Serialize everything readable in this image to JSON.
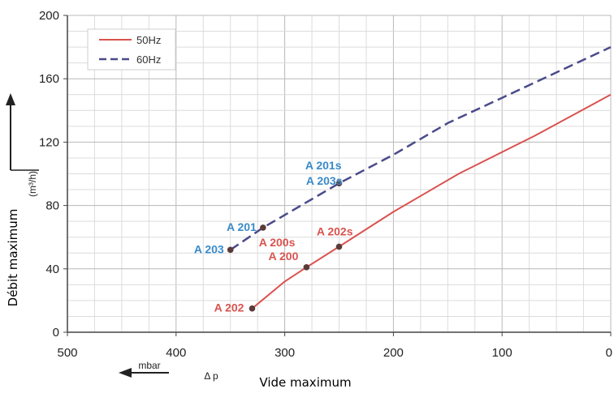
{
  "chart_data": {
    "type": "line",
    "title": "",
    "xlabel": "Vide maximum",
    "ylabel": "Débit maximum",
    "ylabel_unit": "(m³/h)",
    "x_unit_label": "mbar",
    "x_symbol": "Δ p",
    "xlim": [
      500,
      0
    ],
    "ylim": [
      0,
      200
    ],
    "x_ticks": [
      "500",
      "400",
      "300",
      "200",
      "100",
      "0"
    ],
    "y_ticks": [
      "0",
      "40",
      "80",
      "120",
      "160",
      "200"
    ],
    "grid": true,
    "legend_position": "top-left",
    "series": [
      {
        "name": "50Hz",
        "color": "#d9534f",
        "dash": "solid",
        "x": [
          330,
          300,
          280,
          250,
          200,
          140,
          70,
          0
        ],
        "y": [
          15,
          32,
          41,
          54,
          76,
          100,
          124,
          150
        ]
      },
      {
        "name": "60Hz",
        "color": "#4a4a8a",
        "dash": "dashed",
        "x": [
          350,
          320,
          250,
          200,
          150,
          100,
          50,
          0
        ],
        "y": [
          52,
          66,
          94,
          112,
          132,
          148,
          164,
          180
        ]
      }
    ],
    "annotations": [
      {
        "text": "A 202",
        "x": 330,
        "y": 15,
        "color": "#d9534f"
      },
      {
        "text": "A 200",
        "x": 280,
        "y": 41,
        "color": "#d9534f"
      },
      {
        "text": "A 200s",
        "x": 280,
        "y": 41,
        "color": "#d9534f"
      },
      {
        "text": "A 202s",
        "x": 250,
        "y": 54,
        "color": "#d9534f"
      },
      {
        "text": "A 203",
        "x": 350,
        "y": 52,
        "color": "#3a8ac8"
      },
      {
        "text": "A 201",
        "x": 320,
        "y": 66,
        "color": "#3a8ac8"
      },
      {
        "text": "A 203s",
        "x": 250,
        "y": 94,
        "color": "#3a8ac8"
      },
      {
        "text": "A 201s",
        "x": 250,
        "y": 94,
        "color": "#3a8ac8"
      }
    ]
  }
}
